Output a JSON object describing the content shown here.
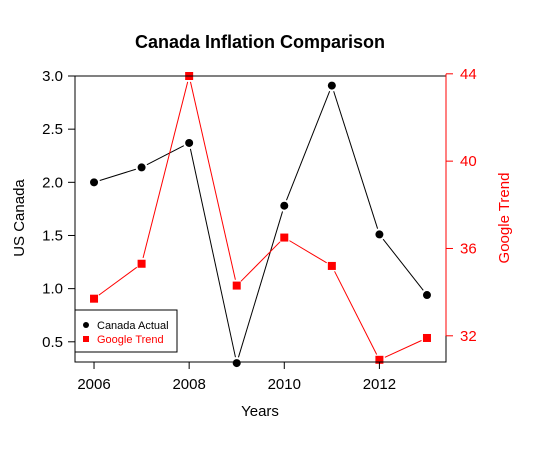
{
  "chart_data": {
    "type": "line",
    "title": "Canada Inflation Comparison",
    "xlabel": "Years",
    "ylabel_left": "US Canada",
    "ylabel_right": "Google Trend",
    "x": [
      2006,
      2007,
      2008,
      2009,
      2010,
      2011,
      2012,
      2013
    ],
    "xlim": [
      2005.6,
      2013.4
    ],
    "x_ticks": [
      2006,
      2008,
      2010,
      2012
    ],
    "x_tick_labels": [
      "2006",
      "2008",
      "2010",
      "2012"
    ],
    "ylim_left": [
      0.31,
      3.0
    ],
    "y_ticks_left": [
      0.5,
      1.0,
      1.5,
      2.0,
      2.5,
      3.0
    ],
    "y_tick_labels_left": [
      "0.5",
      "1.0",
      "1.5",
      "2.0",
      "2.5",
      "3.0"
    ],
    "ylim_right": [
      30.8,
      43.9
    ],
    "y_ticks_right": [
      32,
      36,
      40,
      44
    ],
    "y_tick_labels_right": [
      "32",
      "36",
      "40",
      "44"
    ],
    "grid": false,
    "legend_position": "bottom-left",
    "series": [
      {
        "name": "Canada Actual",
        "axis": "left",
        "color": "#000000",
        "marker": "circle",
        "values": [
          2.0,
          2.14,
          2.37,
          0.3,
          1.78,
          2.91,
          1.51,
          0.94
        ]
      },
      {
        "name": "Google Trend",
        "axis": "right",
        "color": "#ff0000",
        "marker": "square",
        "values": [
          33.7,
          35.3,
          43.9,
          34.3,
          36.5,
          35.2,
          30.9,
          31.9
        ]
      }
    ]
  },
  "colors": {
    "left_axis": "#000000",
    "right_axis": "#ff0000"
  }
}
